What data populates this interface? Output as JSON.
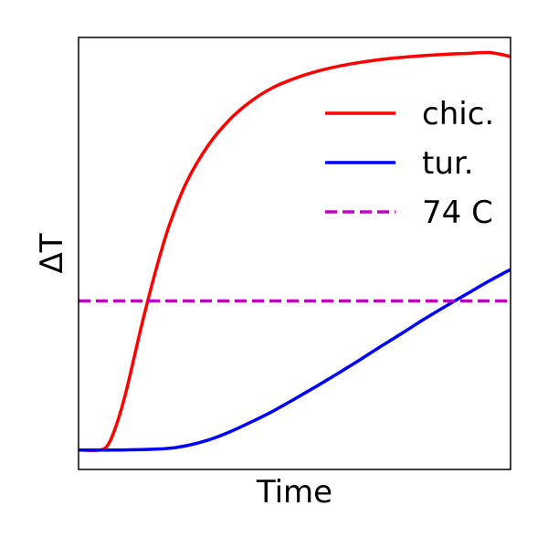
{
  "chart_data": {
    "type": "line",
    "title": "",
    "xlabel": "Time",
    "ylabel": "ΔT",
    "xticks": false,
    "yticks": false,
    "grid": false,
    "xlim": [
      0,
      1
    ],
    "ylim": [
      0,
      1
    ],
    "legend": {
      "placement": "top-right",
      "frame": false
    },
    "series": [
      {
        "name": "chic.",
        "color": "#ff0000",
        "style": "solid",
        "x": [
          0.0,
          0.05,
          0.07,
          0.09,
          0.11,
          0.13,
          0.15,
          0.18,
          0.21,
          0.25,
          0.3,
          0.35,
          0.4,
          0.45,
          0.5,
          0.55,
          0.6,
          0.65,
          0.7,
          0.75,
          0.8,
          0.85,
          0.9,
          0.95,
          1.0
        ],
        "y": [
          0.045,
          0.045,
          0.06,
          0.11,
          0.18,
          0.265,
          0.35,
          0.465,
          0.565,
          0.665,
          0.75,
          0.81,
          0.853,
          0.884,
          0.905,
          0.921,
          0.933,
          0.942,
          0.949,
          0.954,
          0.958,
          0.961,
          0.963,
          0.965,
          0.956
        ]
      },
      {
        "name": "tur.",
        "color": "#0000ff",
        "style": "solid",
        "x": [
          0.0,
          0.1,
          0.2,
          0.25,
          0.3,
          0.35,
          0.4,
          0.45,
          0.5,
          0.55,
          0.6,
          0.65,
          0.7,
          0.75,
          0.8,
          0.85,
          0.9,
          0.95,
          1.0
        ],
        "y": [
          0.045,
          0.045,
          0.048,
          0.055,
          0.068,
          0.087,
          0.11,
          0.135,
          0.163,
          0.192,
          0.222,
          0.253,
          0.285,
          0.316,
          0.348,
          0.378,
          0.407,
          0.436,
          0.463
        ]
      },
      {
        "name": "74 C",
        "color": "#bf00bf",
        "style": "dashed",
        "x": [
          0.0,
          1.0
        ],
        "y": [
          0.39,
          0.39
        ]
      }
    ]
  }
}
